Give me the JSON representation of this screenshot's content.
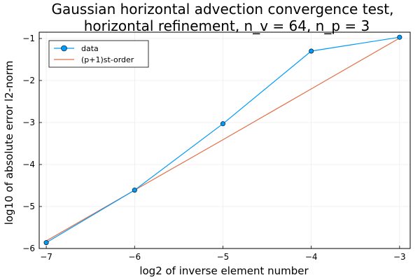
{
  "chart_data": {
    "type": "line",
    "title": [
      "Gaussian horizontal advection convergence test,",
      "horizontal refinement, n_v = 64, n_p = 3"
    ],
    "xlabel": "log2 of inverse element number",
    "ylabel": "log10 of absolute error l2-norm",
    "xlim": [
      -7.08,
      -2.88
    ],
    "ylim": [
      -6.0,
      -0.85
    ],
    "xticks": [
      -7,
      -6,
      -5,
      -4,
      -3
    ],
    "xtick_labels": [
      "−7",
      "−6",
      "−5",
      "−4",
      "−3"
    ],
    "yticks": [
      -6,
      -5,
      -4,
      -3,
      -2,
      -1
    ],
    "ytick_labels": [
      "−6",
      "−5",
      "−4",
      "−3",
      "−2",
      "−1"
    ],
    "grid": true,
    "legend_position": "top-left",
    "series": [
      {
        "name": "data",
        "color": "#009AFA",
        "marker": "circle",
        "x": [
          -7,
          -6,
          -5,
          -4,
          -3
        ],
        "y": [
          -5.86,
          -4.61,
          -3.03,
          -1.3,
          -0.97
        ]
      },
      {
        "name": "(p+1)st-order",
        "color": "#E26F46",
        "marker": "none",
        "x": [
          -7,
          -6,
          -5,
          -4,
          -3
        ],
        "y": [
          -5.82,
          -4.61,
          -3.41,
          -2.2,
          -0.99
        ]
      }
    ]
  }
}
